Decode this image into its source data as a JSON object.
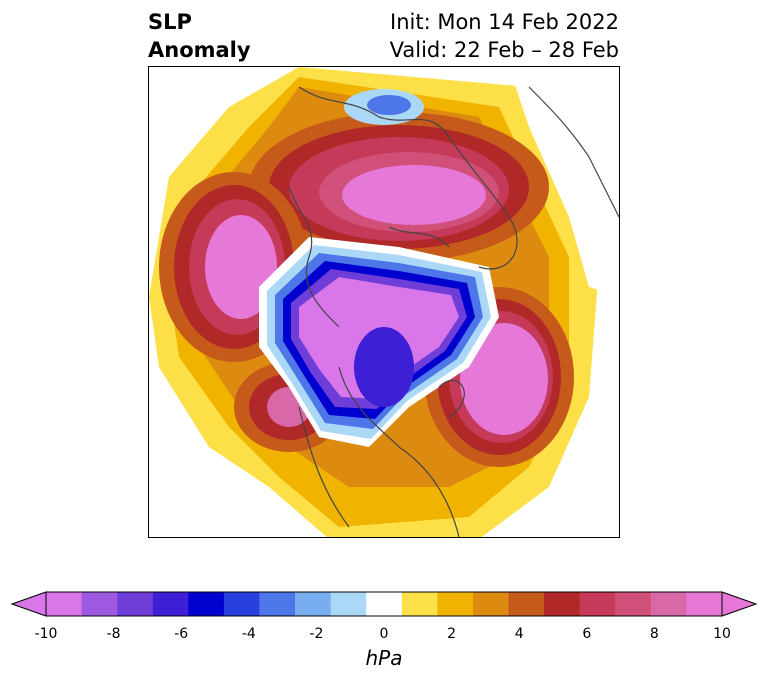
{
  "title": {
    "left_line1": "SLP",
    "left_line2": "Anomaly",
    "init": "Init: Mon 14 Feb 2022",
    "valid": "Valid: 22 Feb – 28 Feb"
  },
  "colorbar": {
    "units": "hPa",
    "ticks": [
      "-10",
      "-8",
      "-6",
      "-4",
      "-2",
      "0",
      "2",
      "4",
      "6",
      "8",
      "10"
    ],
    "colors": [
      "#d876ea",
      "#9d5ae0",
      "#6f3ed8",
      "#3d1fd6",
      "#0000cf",
      "#2a3fe0",
      "#4d76e8",
      "#78aef0",
      "#acd8f8",
      "#ffffff",
      "#fde047",
      "#f0b400",
      "#dd8a10",
      "#c65a1a",
      "#b02828",
      "#c43a58",
      "#d05079",
      "#d868a8",
      "#e678d8"
    ],
    "min_color": "#d876ea",
    "max_color": "#e678d8",
    "extend": "both"
  }
}
